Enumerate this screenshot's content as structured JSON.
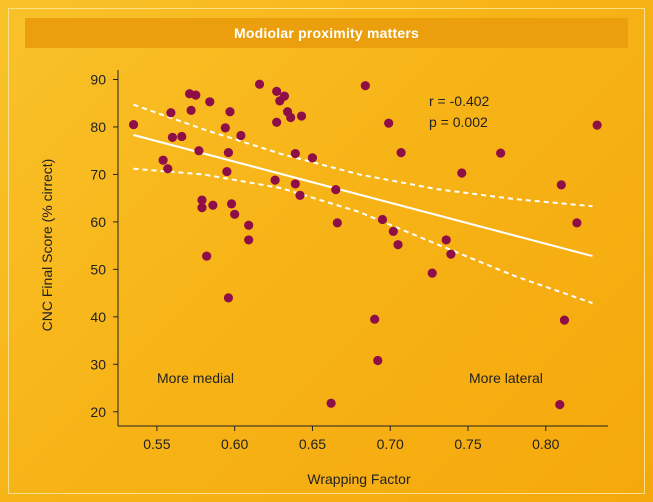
{
  "chart_data": {
    "type": "scatter",
    "title": "Modiolar proximity matters",
    "xlabel": "Wrapping Factor",
    "ylabel": "CNC Final Score (% cirrect)",
    "xlim": [
      0.525,
      0.84
    ],
    "ylim": [
      17,
      92
    ],
    "xticks": [
      "0.55",
      "0.60",
      "0.65",
      "0.70",
      "0.75",
      "0.80"
    ],
    "yticks": [
      "20",
      "30",
      "40",
      "50",
      "60",
      "70",
      "80",
      "90"
    ],
    "grid": false,
    "colors": {
      "points": "#8e0e47",
      "lines": "#ffffff"
    },
    "annotations": {
      "stat_r": "r = -0.402",
      "stat_p": "p = 0.002",
      "left_label": "More medial",
      "right_label": "More lateral"
    },
    "regression": {
      "x": [
        0.535,
        0.83
      ],
      "y": [
        78.3,
        52.8
      ]
    },
    "ci_upper": {
      "x": [
        0.535,
        0.58,
        0.63,
        0.68,
        0.73,
        0.78,
        0.83
      ],
      "y": [
        84.7,
        79.5,
        74.3,
        70.0,
        66.9,
        64.8,
        63.3
      ]
    },
    "ci_lower": {
      "x": [
        0.535,
        0.58,
        0.63,
        0.68,
        0.73,
        0.78,
        0.83
      ],
      "y": [
        71.2,
        70.0,
        67.1,
        62.1,
        55.3,
        48.6,
        42.9
      ]
    },
    "points": [
      [
        0.535,
        80.5
      ],
      [
        0.554,
        73
      ],
      [
        0.557,
        71.2
      ],
      [
        0.559,
        83
      ],
      [
        0.56,
        77.8
      ],
      [
        0.566,
        78
      ],
      [
        0.571,
        87
      ],
      [
        0.572,
        83.5
      ],
      [
        0.575,
        86.7
      ],
      [
        0.577,
        75
      ],
      [
        0.579,
        64.6
      ],
      [
        0.579,
        63
      ],
      [
        0.582,
        52.8
      ],
      [
        0.584,
        85.3
      ],
      [
        0.586,
        63.5
      ],
      [
        0.594,
        79.8
      ],
      [
        0.595,
        70.6
      ],
      [
        0.596,
        74.6
      ],
      [
        0.596,
        44
      ],
      [
        0.597,
        83.2
      ],
      [
        0.598,
        63.8
      ],
      [
        0.6,
        61.6
      ],
      [
        0.604,
        78.2
      ],
      [
        0.609,
        59.3
      ],
      [
        0.609,
        56.2
      ],
      [
        0.616,
        89
      ],
      [
        0.626,
        68.8
      ],
      [
        0.627,
        81
      ],
      [
        0.627,
        87.5
      ],
      [
        0.629,
        85.5
      ],
      [
        0.632,
        86.5
      ],
      [
        0.634,
        83.2
      ],
      [
        0.636,
        82
      ],
      [
        0.639,
        74.4
      ],
      [
        0.639,
        68
      ],
      [
        0.642,
        65.6
      ],
      [
        0.643,
        82.3
      ],
      [
        0.65,
        73.5
      ],
      [
        0.662,
        21.8
      ],
      [
        0.665,
        66.8
      ],
      [
        0.666,
        59.8
      ],
      [
        0.684,
        88.7
      ],
      [
        0.69,
        39.5
      ],
      [
        0.692,
        30.8
      ],
      [
        0.695,
        60.5
      ],
      [
        0.699,
        80.8
      ],
      [
        0.702,
        58
      ],
      [
        0.705,
        55.2
      ],
      [
        0.707,
        74.6
      ],
      [
        0.727,
        49.2
      ],
      [
        0.736,
        56.2
      ],
      [
        0.739,
        53.2
      ],
      [
        0.746,
        70.3
      ],
      [
        0.771,
        74.5
      ],
      [
        0.809,
        21.5
      ],
      [
        0.81,
        67.8
      ],
      [
        0.812,
        39.3
      ],
      [
        0.82,
        59.8
      ],
      [
        0.833,
        80.4
      ]
    ]
  }
}
